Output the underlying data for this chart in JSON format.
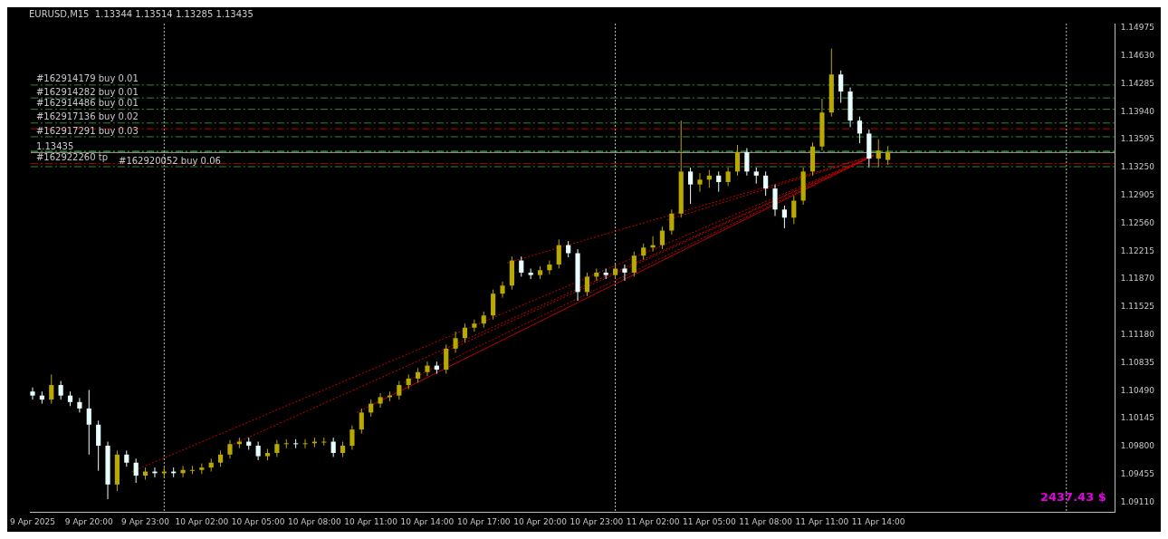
{
  "chart_data": {
    "type": "candlestick",
    "title": "EURUSD,M15  1.13344 1.13514 1.13285 1.13435",
    "xlim": [
      "2025-04-09T16:54",
      "2025-04-12T02:36"
    ],
    "xticks": [
      {
        "value": "2025-04-09T17:00",
        "label": "9 Apr 2025"
      },
      {
        "value": "2025-04-09T20:00",
        "label": "9 Apr 20:00"
      },
      {
        "value": "2025-04-09T23:00",
        "label": "9 Apr 23:00"
      },
      {
        "value": "2025-04-10T02:00",
        "label": "10 Apr 02:00"
      },
      {
        "value": "2025-04-10T05:00",
        "label": "10 Apr 05:00"
      },
      {
        "value": "2025-04-10T08:00",
        "label": "10 Apr 08:00"
      },
      {
        "value": "2025-04-10T11:00",
        "label": "10 Apr 11:00"
      },
      {
        "value": "2025-04-10T14:00",
        "label": "10 Apr 14:00"
      },
      {
        "value": "2025-04-10T17:00",
        "label": "10 Apr 17:00"
      },
      {
        "value": "2025-04-10T20:00",
        "label": "10 Apr 20:00"
      },
      {
        "value": "2025-04-10T23:00",
        "label": "10 Apr 23:00"
      },
      {
        "value": "2025-04-11T02:00",
        "label": "11 Apr 02:00"
      },
      {
        "value": "2025-04-11T05:00",
        "label": "11 Apr 05:00"
      },
      {
        "value": "2025-04-11T08:00",
        "label": "11 Apr 08:00"
      },
      {
        "value": "2025-04-11T11:00",
        "label": "11 Apr 11:00"
      },
      {
        "value": "2025-04-11T14:00",
        "label": "11 Apr 14:00"
      }
    ],
    "ylim": [
      1.0899,
      1.1503
    ],
    "yticks": [
      {
        "value": 1.0911,
        "label": "1.09110"
      },
      {
        "value": 1.09455,
        "label": "1.09455"
      },
      {
        "value": 1.098,
        "label": "1.09800"
      },
      {
        "value": 1.10145,
        "label": "1.10145"
      },
      {
        "value": 1.1049,
        "label": "1.10490"
      },
      {
        "value": 1.10835,
        "label": "1.10835"
      },
      {
        "value": 1.1118,
        "label": "1.11180"
      },
      {
        "value": 1.11525,
        "label": "1.11525"
      },
      {
        "value": 1.1187,
        "label": "1.11870"
      },
      {
        "value": 1.12215,
        "label": "1.12215"
      },
      {
        "value": 1.1256,
        "label": "1.12560"
      },
      {
        "value": 1.12905,
        "label": "1.12905"
      },
      {
        "value": 1.1325,
        "label": "1.13250"
      },
      {
        "value": 1.13595,
        "label": "1.13595"
      },
      {
        "value": 1.1394,
        "label": "1.13940"
      },
      {
        "value": 1.14285,
        "label": "1.14285"
      },
      {
        "value": 1.1463,
        "label": "1.14630"
      },
      {
        "value": 1.14975,
        "label": "1.14975"
      }
    ],
    "grid": false,
    "legend": false,
    "marker": "none",
    "line_style": "dotted",
    "series": [
      {
        "type": "candlestick",
        "x": [
          "2025-04-09T17:00",
          "2025-04-09T17:30",
          "2025-04-09T18:00",
          "2025-04-09T18:30",
          "2025-04-09T19:00",
          "2025-04-09T19:30",
          "2025-04-09T20:00",
          "2025-04-09T20:30",
          "2025-04-09T21:00",
          "2025-04-09T21:30",
          "2025-04-09T22:00",
          "2025-04-09T22:30",
          "2025-04-09T23:00",
          "2025-04-09T23:30",
          "2025-04-10T00:00",
          "2025-04-10T00:30",
          "2025-04-10T01:00",
          "2025-04-10T01:30",
          "2025-04-10T02:00",
          "2025-04-10T02:30",
          "2025-04-10T03:00",
          "2025-04-10T03:30",
          "2025-04-10T04:00",
          "2025-04-10T04:30",
          "2025-04-10T05:00",
          "2025-04-10T05:30",
          "2025-04-10T06:00",
          "2025-04-10T06:30",
          "2025-04-10T07:00",
          "2025-04-10T07:30",
          "2025-04-10T08:00",
          "2025-04-10T08:30",
          "2025-04-10T09:00",
          "2025-04-10T09:30",
          "2025-04-10T10:00",
          "2025-04-10T10:30",
          "2025-04-10T11:00",
          "2025-04-10T11:30",
          "2025-04-10T12:00",
          "2025-04-10T12:30",
          "2025-04-10T13:00",
          "2025-04-10T13:30",
          "2025-04-10T14:00",
          "2025-04-10T14:30",
          "2025-04-10T15:00",
          "2025-04-10T15:30",
          "2025-04-10T16:00",
          "2025-04-10T16:30",
          "2025-04-10T17:00",
          "2025-04-10T17:30",
          "2025-04-10T18:00",
          "2025-04-10T18:30",
          "2025-04-10T19:00",
          "2025-04-10T19:30",
          "2025-04-10T20:00",
          "2025-04-10T20:30",
          "2025-04-10T21:00",
          "2025-04-10T21:30",
          "2025-04-10T22:00",
          "2025-04-10T22:30",
          "2025-04-10T23:00",
          "2025-04-10T23:30",
          "2025-04-11T00:00",
          "2025-04-11T00:30",
          "2025-04-11T01:00",
          "2025-04-11T01:30",
          "2025-04-11T02:00",
          "2025-04-11T02:30",
          "2025-04-11T03:00",
          "2025-04-11T03:30",
          "2025-04-11T04:00",
          "2025-04-11T04:30",
          "2025-04-11T05:00",
          "2025-04-11T05:30",
          "2025-04-11T06:00",
          "2025-04-11T06:30",
          "2025-04-11T07:00",
          "2025-04-11T07:30",
          "2025-04-11T08:00",
          "2025-04-11T08:30",
          "2025-04-11T09:00",
          "2025-04-11T09:30",
          "2025-04-11T10:00",
          "2025-04-11T10:30",
          "2025-04-11T11:00",
          "2025-04-11T11:30",
          "2025-04-11T12:00",
          "2025-04-11T12:30",
          "2025-04-11T13:00",
          "2025-04-11T13:30",
          "2025-04-11T14:00",
          "2025-04-11T14:30"
        ],
        "colors": [
          "#e8ffff",
          "#e8ffff",
          "#b8a800",
          "#e8ffff",
          "#e8ffff",
          "#e8ffff",
          "#e8ffff",
          "#e8ffff",
          "#e8ffff",
          "#b8a800",
          "#e8ffff",
          "#e8ffff",
          "#b8a800",
          "#e8ffff",
          "#b8a800",
          "#e8ffff",
          "#b8a800",
          "#b8a800",
          "#b8a800",
          "#b8a800",
          "#b8a800",
          "#b8a800",
          "#b8a800",
          "#e8ffff",
          "#e8ffff",
          "#b8a800",
          "#b8a800",
          "#b8a800",
          "#e8ffff",
          "#b8a800",
          "#b8a800",
          "#b8a800",
          "#e8ffff",
          "#b8a800",
          "#b8a800",
          "#b8a800",
          "#b8a800",
          "#b8a800",
          "#b8a800",
          "#b8a800",
          "#b8a800",
          "#b8a800",
          "#b8a800",
          "#e8ffff",
          "#b8a800",
          "#b8a800",
          "#b8a800",
          "#b8a800",
          "#b8a800",
          "#b8a800",
          "#b8a800",
          "#b8a800",
          "#e8ffff",
          "#e8ffff",
          "#b8a800",
          "#b8a800",
          "#b8a800",
          "#e8ffff",
          "#e8ffff",
          "#b8a800",
          "#b8a800",
          "#e8ffff",
          "#b8a800",
          "#e8ffff",
          "#b8a800",
          "#b8a800",
          "#b8a800",
          "#b8a800",
          "#b8a800",
          "#b8a800",
          "#e8ffff",
          "#b8a800",
          "#b8a800",
          "#e8ffff",
          "#b8a800",
          "#b8a800",
          "#e8ffff",
          "#e8ffff",
          "#e8ffff",
          "#e8ffff",
          "#e8ffff",
          "#b8a800",
          "#b8a800",
          "#b8a800",
          "#b8a800",
          "#b8a800",
          "#e8ffff",
          "#e8ffff",
          "#e8ffff",
          "#e8ffff",
          "#b8a800",
          "#b8a800"
        ],
        "ohlc": [
          [
            1.1048,
            1.1053,
            1.1038,
            1.1043
          ],
          [
            1.1043,
            1.1048,
            1.1033,
            1.1038
          ],
          [
            1.1038,
            1.1069,
            1.1033,
            1.1056
          ],
          [
            1.1056,
            1.1061,
            1.1038,
            1.1043
          ],
          [
            1.1043,
            1.1048,
            1.103,
            1.1035
          ],
          [
            1.1035,
            1.104,
            1.1022,
            1.1027
          ],
          [
            1.1027,
            1.105,
            1.097,
            1.1007
          ],
          [
            1.1007,
            1.1012,
            1.095,
            1.0981
          ],
          [
            1.0981,
            1.0986,
            1.0915,
            1.0933
          ],
          [
            1.0933,
            1.0975,
            1.0925,
            1.097
          ],
          [
            1.097,
            1.0975,
            1.0955,
            1.096
          ],
          [
            1.096,
            1.0965,
            1.0935,
            1.0944
          ],
          [
            1.0944,
            1.0954,
            1.0939,
            1.0949
          ],
          [
            1.0949,
            1.0954,
            1.0942,
            1.0947
          ],
          [
            1.0947,
            1.0954,
            1.0942,
            1.0949
          ],
          [
            1.0949,
            1.0954,
            1.0942,
            1.0947
          ],
          [
            1.0947,
            1.0956,
            1.0942,
            1.0951
          ],
          [
            1.0951,
            1.0956,
            1.0946,
            1.0951
          ],
          [
            1.0951,
            1.0959,
            1.0946,
            1.0954
          ],
          [
            1.0954,
            1.0965,
            1.0949,
            1.096
          ],
          [
            1.096,
            1.0975,
            1.0955,
            1.097
          ],
          [
            1.097,
            1.0988,
            1.0965,
            1.0983
          ],
          [
            1.0983,
            1.0991,
            1.0978,
            1.0986
          ],
          [
            1.0986,
            1.0991,
            1.0976,
            1.0981
          ],
          [
            1.0981,
            1.0986,
            1.0963,
            1.0968
          ],
          [
            1.0968,
            1.0977,
            1.0963,
            1.0972
          ],
          [
            1.0972,
            1.0988,
            1.0967,
            1.0983
          ],
          [
            1.0983,
            1.0989,
            1.0978,
            1.0984
          ],
          [
            1.0984,
            1.0989,
            1.0978,
            1.0983
          ],
          [
            1.0983,
            1.0989,
            1.0978,
            1.0984
          ],
          [
            1.0984,
            1.0991,
            1.0979,
            1.0986
          ],
          [
            1.0986,
            1.0991,
            1.0981,
            1.0986
          ],
          [
            1.0986,
            1.0991,
            1.0967,
            1.0972
          ],
          [
            1.0972,
            1.0986,
            1.0967,
            1.0981
          ],
          [
            1.0981,
            1.1006,
            1.0976,
            1.1001
          ],
          [
            1.1001,
            1.1027,
            1.0996,
            1.1022
          ],
          [
            1.1022,
            1.1038,
            1.1017,
            1.1033
          ],
          [
            1.1033,
            1.1046,
            1.1028,
            1.1041
          ],
          [
            1.1041,
            1.1048,
            1.1036,
            1.1043
          ],
          [
            1.1043,
            1.1061,
            1.1038,
            1.1056
          ],
          [
            1.1056,
            1.1069,
            1.1051,
            1.1064
          ],
          [
            1.1064,
            1.1077,
            1.1059,
            1.1072
          ],
          [
            1.1072,
            1.1085,
            1.1067,
            1.108
          ],
          [
            1.108,
            1.1085,
            1.107,
            1.1075
          ],
          [
            1.1075,
            1.1106,
            1.107,
            1.1101
          ],
          [
            1.1101,
            1.1122,
            1.1096,
            1.1114
          ],
          [
            1.1114,
            1.1132,
            1.1109,
            1.1127
          ],
          [
            1.1127,
            1.1137,
            1.1122,
            1.1132
          ],
          [
            1.1132,
            1.1147,
            1.1127,
            1.1142
          ],
          [
            1.1142,
            1.1174,
            1.1137,
            1.1169
          ],
          [
            1.1169,
            1.1184,
            1.1164,
            1.1179
          ],
          [
            1.1179,
            1.1215,
            1.1174,
            1.121
          ],
          [
            1.121,
            1.1215,
            1.119,
            1.1195
          ],
          [
            1.1195,
            1.12,
            1.1187,
            1.1192
          ],
          [
            1.1192,
            1.1203,
            1.1187,
            1.1198
          ],
          [
            1.1198,
            1.121,
            1.1193,
            1.1205
          ],
          [
            1.1205,
            1.1236,
            1.12,
            1.1229
          ],
          [
            1.1229,
            1.1234,
            1.1214,
            1.1219
          ],
          [
            1.1219,
            1.1224,
            1.116,
            1.1171
          ],
          [
            1.1171,
            1.1195,
            1.1166,
            1.119
          ],
          [
            1.119,
            1.12,
            1.1185,
            1.1195
          ],
          [
            1.1195,
            1.12,
            1.1187,
            1.1192
          ],
          [
            1.1192,
            1.1205,
            1.1187,
            1.12
          ],
          [
            1.12,
            1.1205,
            1.1185,
            1.1195
          ],
          [
            1.1195,
            1.1221,
            1.119,
            1.1216
          ],
          [
            1.1216,
            1.1231,
            1.1211,
            1.1226
          ],
          [
            1.1226,
            1.124,
            1.1221,
            1.1229
          ],
          [
            1.1229,
            1.1252,
            1.1224,
            1.1247
          ],
          [
            1.1247,
            1.1273,
            1.1242,
            1.1268
          ],
          [
            1.1268,
            1.1383,
            1.1263,
            1.132
          ],
          [
            1.132,
            1.1325,
            1.128,
            1.1304
          ],
          [
            1.1304,
            1.1318,
            1.1295,
            1.131
          ],
          [
            1.131,
            1.1322,
            1.13,
            1.1315
          ],
          [
            1.1315,
            1.132,
            1.1295,
            1.1307
          ],
          [
            1.1307,
            1.1325,
            1.1302,
            1.132
          ],
          [
            1.132,
            1.1353,
            1.1315,
            1.1344
          ],
          [
            1.1344,
            1.1349,
            1.1315,
            1.132
          ],
          [
            1.132,
            1.1325,
            1.1305,
            1.1315
          ],
          [
            1.1315,
            1.132,
            1.129,
            1.1299
          ],
          [
            1.1299,
            1.1304,
            1.1265,
            1.1273
          ],
          [
            1.1273,
            1.1278,
            1.125,
            1.1263
          ],
          [
            1.1263,
            1.129,
            1.1255,
            1.1284
          ],
          [
            1.1284,
            1.1325,
            1.1279,
            1.132
          ],
          [
            1.132,
            1.1356,
            1.1315,
            1.1351
          ],
          [
            1.1351,
            1.141,
            1.1346,
            1.1393
          ],
          [
            1.1393,
            1.1472,
            1.1388,
            1.144
          ],
          [
            1.144,
            1.1445,
            1.1405,
            1.1419
          ],
          [
            1.1419,
            1.1424,
            1.1375,
            1.1383
          ],
          [
            1.1383,
            1.1388,
            1.1355,
            1.1367
          ],
          [
            1.1367,
            1.1372,
            1.1325,
            1.1336
          ],
          [
            1.1336,
            1.136,
            1.1325,
            1.1346
          ],
          [
            1.13344,
            1.13514,
            1.13285,
            1.13435
          ]
        ]
      },
      {
        "type": "line",
        "color": "#cc0000",
        "x": [
          "2025-04-09T22:18",
          "2025-04-11T13:45"
        ],
        "values": [
          1.0949,
          1.134
        ]
      },
      {
        "type": "line",
        "color": "#cc0000",
        "x": [
          "2025-04-10T03:42",
          "2025-04-11T13:45"
        ],
        "values": [
          1.0983,
          1.134
        ]
      },
      {
        "type": "line",
        "color": "#cc0000",
        "x": [
          "2025-04-10T10:15",
          "2025-04-11T13:45"
        ],
        "values": [
          1.1022,
          1.134
        ]
      },
      {
        "type": "line",
        "color": "#cc0000",
        "x": [
          "2025-04-10T11:12",
          "2025-04-11T13:45"
        ],
        "values": [
          1.1033,
          1.134
        ]
      },
      {
        "type": "line",
        "color": "#cc0000",
        "x": [
          "2025-04-10T12:45",
          "2025-04-11T13:45"
        ],
        "values": [
          1.1059,
          1.134
        ]
      },
      {
        "type": "line",
        "color": "#cc0000",
        "x": [
          "2025-04-10T14:45",
          "2025-04-11T13:45"
        ],
        "values": [
          1.1095,
          1.134
        ]
      },
      {
        "type": "line",
        "color": "#cc0000",
        "x": [
          "2025-04-10T18:15",
          "2025-04-11T13:45"
        ],
        "values": [
          1.1207,
          1.134
        ]
      },
      {
        "type": "line",
        "color": "#cc0000",
        "x": [
          "2025-04-11T02:45",
          "2025-04-11T13:45"
        ],
        "values": [
          1.126,
          1.134
        ]
      }
    ],
    "ref_lines": [
      {
        "axis": "x",
        "value": "2025-04-10T00:00",
        "label": null,
        "color": "#c0c0c0",
        "line_style": "dotted"
      },
      {
        "axis": "x",
        "value": "2025-04-11T00:00",
        "label": null,
        "color": "#c0c0c0",
        "line_style": "dotted"
      },
      {
        "axis": "x",
        "value": "2025-04-12T00:00",
        "label": null,
        "color": "#c0c0c0",
        "line_style": "dotted"
      },
      {
        "axis": "y",
        "value": 1.1427,
        "label": "#162914179 buy 0.01",
        "color": "#2e8b2e",
        "line_style": "dashed"
      },
      {
        "axis": "y",
        "value": 1.1411,
        "label": "#162914282 buy 0.01",
        "color": "#2e8b2e",
        "line_style": "dashed"
      },
      {
        "axis": "y",
        "value": 1.1397,
        "label": "#162914486 buy 0.01",
        "color": "#2e8b2e",
        "line_style": "dashed"
      },
      {
        "axis": "y",
        "value": 1.138,
        "label": "#162917136 buy 0.02",
        "color": "#2e8b2e",
        "line_style": "dashed"
      },
      {
        "axis": "y",
        "value": 1.1373,
        "label": null,
        "color": "#b00000",
        "line_style": "dashed"
      },
      {
        "axis": "y",
        "value": 1.1363,
        "label": "#162917291 buy 0.03",
        "color": "#2e8b2e",
        "line_style": "dashed"
      },
      {
        "axis": "y",
        "value": 1.1345,
        "label": null,
        "color": "#40d040",
        "line_style": "dashed"
      },
      {
        "axis": "y",
        "value": 1.13435,
        "label": "1.13435",
        "color": "#a0a0a0",
        "line_style": "solid"
      },
      {
        "axis": "y",
        "value": 1.133,
        "label": "#162922260 tp",
        "color": "#b00000",
        "line_style": "dashed"
      },
      {
        "axis": "y",
        "value": 1.1326,
        "label": "#162920052 buy 0.06",
        "color": "#2e8b2e",
        "line_style": "dashed"
      }
    ],
    "annotations": [
      "2437.43 $"
    ]
  }
}
